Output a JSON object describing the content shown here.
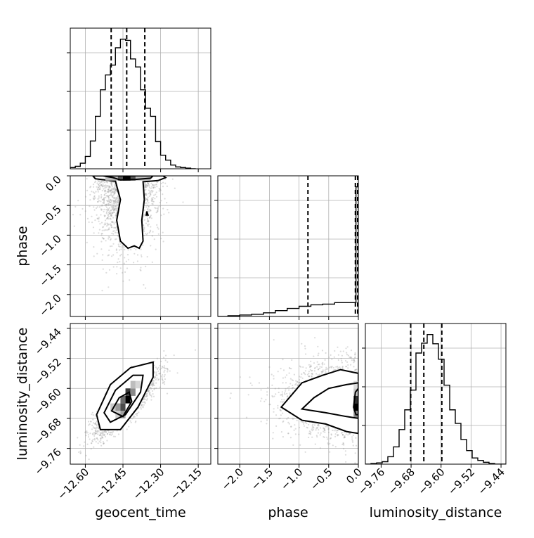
{
  "chart_data": {
    "type": "corner",
    "parameters": [
      "geocent_time",
      "phase",
      "luminosity_distance"
    ],
    "ranges": {
      "geocent_time": [
        -12.66,
        -12.1
      ],
      "phase": [
        -2.37,
        0.0
      ],
      "luminosity_distance": [
        -9.802,
        -9.427
      ]
    },
    "ticks": {
      "geocent_time": [
        "−12.60",
        "−12.45",
        "−12.30",
        "−12.15"
      ],
      "geocent_time_values": [
        -12.6,
        -12.45,
        -12.3,
        -12.15
      ],
      "phase": [
        "−2.0",
        "−1.5",
        "−1.0",
        "−0.5",
        "0.0"
      ],
      "phase_values": [
        -2.0,
        -1.5,
        -1.0,
        -0.5,
        0.0
      ],
      "luminosity_distance": [
        "−9.76",
        "−9.68",
        "−9.60",
        "−9.52",
        "−9.44"
      ],
      "luminosity_distance_values": [
        -9.76,
        -9.68,
        -9.6,
        -9.52,
        -9.44
      ]
    },
    "quantiles": {
      "geocent_time": [
        -12.497,
        -12.435,
        -12.363
      ],
      "phase": [
        -0.85,
        -0.05,
        0.0
      ],
      "luminosity_distance": [
        -9.681,
        -9.646,
        -9.598
      ]
    },
    "histograms": {
      "geocent_time": {
        "edges": [
          -12.66,
          -12.64,
          -12.62,
          -12.6,
          -12.58,
          -12.56,
          -12.54,
          -12.52,
          -12.5,
          -12.48,
          -12.46,
          -12.44,
          -12.42,
          -12.4,
          -12.38,
          -12.36,
          -12.34,
          -12.32,
          -12.3,
          -12.28,
          -12.26,
          -12.24,
          -12.22,
          -12.2,
          -12.18,
          -12.16
        ],
        "counts": [
          2,
          4,
          9,
          20,
          45,
          85,
          128,
          152,
          168,
          196,
          210,
          208,
          178,
          165,
          128,
          98,
          85,
          44,
          22,
          14,
          6,
          3,
          2,
          1,
          0
        ]
      },
      "phase": {
        "edges": [
          -2.37,
          -2.2,
          -2.0,
          -1.8,
          -1.6,
          -1.4,
          -1.2,
          -1.0,
          -0.8,
          -0.6,
          -0.4,
          -0.2,
          -0.04,
          0.0
        ],
        "counts": [
          0,
          1,
          2,
          3,
          5,
          8,
          11,
          14,
          16,
          17,
          19,
          19,
          178
        ]
      },
      "luminosity_distance": {
        "edges": [
          -9.802,
          -9.787,
          -9.772,
          -9.757,
          -9.742,
          -9.727,
          -9.712,
          -9.697,
          -9.682,
          -9.667,
          -9.652,
          -9.637,
          -9.622,
          -9.607,
          -9.592,
          -9.577,
          -9.562,
          -9.547,
          -9.532,
          -9.517,
          -9.502,
          -9.487,
          -9.472,
          -9.457,
          -9.442,
          -9.427
        ],
        "counts": [
          0,
          1,
          2,
          4,
          12,
          28,
          56,
          88,
          120,
          180,
          196,
          210,
          195,
          170,
          128,
          88,
          66,
          40,
          22,
          10,
          6,
          3,
          1,
          0,
          0
        ]
      }
    },
    "scatter": {
      "phase_vs_geocent_time": {
        "n_points": 1800,
        "center": [
          -12.44,
          -0.2
        ],
        "spread": [
          0.06,
          0.55
        ]
      },
      "luminosity_distance_vs_geocent_time": {
        "n_points": 1800,
        "center": [
          -12.44,
          -9.64
        ],
        "spread": [
          0.065,
          0.045
        ],
        "correlation": 0.85
      },
      "luminosity_distance_vs_phase": {
        "n_points": 1800,
        "center": [
          -0.3,
          -9.63
        ],
        "spread": [
          0.6,
          0.05
        ]
      }
    },
    "contours": {
      "phase_vs_geocent_time": {
        "outer": [
          [
            -12.57,
            0.0
          ],
          [
            -12.56,
            -0.05
          ],
          [
            -12.48,
            -0.09
          ],
          [
            -12.46,
            -0.4
          ],
          [
            -12.475,
            -0.75
          ],
          [
            -12.46,
            -1.1
          ],
          [
            -12.43,
            -1.22
          ],
          [
            -12.405,
            -1.18
          ],
          [
            -12.385,
            -1.22
          ],
          [
            -12.37,
            -1.1
          ],
          [
            -12.375,
            -0.75
          ],
          [
            -12.365,
            -0.4
          ],
          [
            -12.37,
            -0.1
          ],
          [
            -12.31,
            -0.08
          ],
          [
            -12.28,
            -0.03
          ],
          [
            -12.29,
            0.0
          ]
        ],
        "inner": [
          [
            -12.53,
            0.0
          ],
          [
            -12.49,
            -0.03
          ],
          [
            -12.46,
            -0.07
          ],
          [
            -12.4,
            -0.06
          ],
          [
            -12.34,
            -0.04
          ],
          [
            -12.33,
            0.0
          ]
        ],
        "island": [
          [
            -12.355,
            -0.6
          ],
          [
            -12.35,
            -0.66
          ],
          [
            -12.357,
            -0.66
          ]
        ]
      },
      "luminosity_distance_vs_geocent_time": {
        "levels": [
          [
            [
              -12.555,
              -9.67
            ],
            [
              -12.5,
              -9.59
            ],
            [
              -12.42,
              -9.545
            ],
            [
              -12.33,
              -9.53
            ],
            [
              -12.33,
              -9.57
            ],
            [
              -12.39,
              -9.65
            ],
            [
              -12.46,
              -9.71
            ],
            [
              -12.54,
              -9.71
            ]
          ],
          [
            [
              -12.525,
              -9.665
            ],
            [
              -12.48,
              -9.605
            ],
            [
              -12.41,
              -9.565
            ],
            [
              -12.37,
              -9.565
            ],
            [
              -12.38,
              -9.61
            ],
            [
              -12.44,
              -9.67
            ],
            [
              -12.5,
              -9.69
            ]
          ],
          [
            [
              -12.495,
              -9.66
            ],
            [
              -12.465,
              -9.625
            ],
            [
              -12.425,
              -9.61
            ],
            [
              -12.415,
              -9.635
            ],
            [
              -12.45,
              -9.675
            ]
          ]
        ]
      },
      "luminosity_distance_vs_phase": {
        "levels": [
          [
            [
              0.0,
              -9.56
            ],
            [
              -0.3,
              -9.55
            ],
            [
              -0.6,
              -9.565
            ],
            [
              -0.95,
              -9.585
            ],
            [
              -1.3,
              -9.65
            ],
            [
              -0.95,
              -9.685
            ],
            [
              -0.55,
              -9.695
            ],
            [
              -0.2,
              -9.715
            ],
            [
              0.0,
              -9.72
            ]
          ],
          [
            [
              0.0,
              -9.585
            ],
            [
              -0.2,
              -9.59
            ],
            [
              -0.5,
              -9.6
            ],
            [
              -0.75,
              -9.625
            ],
            [
              -0.95,
              -9.655
            ],
            [
              -0.55,
              -9.665
            ],
            [
              -0.2,
              -9.675
            ],
            [
              0.0,
              -9.68
            ]
          ],
          [
            [
              0.0,
              -9.6
            ],
            [
              -0.05,
              -9.61
            ],
            [
              -0.08,
              -9.65
            ],
            [
              -0.04,
              -9.67
            ],
            [
              0.0,
              -9.67
            ]
          ]
        ]
      }
    },
    "xlabel": {
      "geocent_time": "geocent_time",
      "phase": "phase",
      "luminosity_distance": "luminosity_distance"
    },
    "ylabel": {
      "phase": "phase",
      "luminosity_distance": "luminosity_distance"
    },
    "grid": true,
    "colors": {
      "points": "#9a9a9a",
      "density_dark": "#000000",
      "density_light": "#cfcfcf",
      "lines": "#000000"
    }
  }
}
